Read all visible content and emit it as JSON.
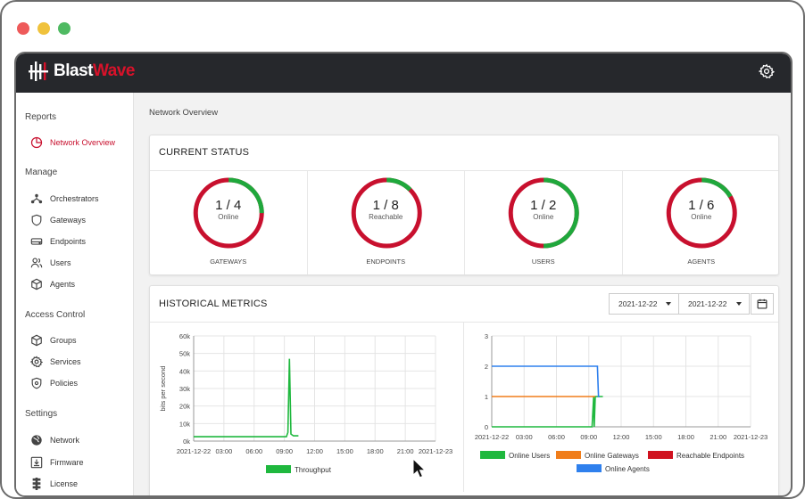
{
  "brand": {
    "name_part1": "Blast",
    "name_part2": "Wave",
    "accent": "#d8122a"
  },
  "sidebar": {
    "sections": [
      {
        "title": "Reports",
        "items": [
          {
            "label": "Network Overview",
            "icon": "pie-chart-icon",
            "active": true
          }
        ]
      },
      {
        "title": "Manage",
        "items": [
          {
            "label": "Orchestrators",
            "icon": "network-icon"
          },
          {
            "label": "Gateways",
            "icon": "shield-icon"
          },
          {
            "label": "Endpoints",
            "icon": "drive-icon"
          },
          {
            "label": "Users",
            "icon": "users-icon"
          },
          {
            "label": "Agents",
            "icon": "cube-icon"
          }
        ]
      },
      {
        "title": "Access Control",
        "items": [
          {
            "label": "Groups",
            "icon": "cube-icon"
          },
          {
            "label": "Services",
            "icon": "gear-icon"
          },
          {
            "label": "Policies",
            "icon": "shield-lock-icon"
          }
        ]
      },
      {
        "title": "Settings",
        "items": [
          {
            "label": "Network",
            "icon": "globe-icon"
          },
          {
            "label": "Firmware",
            "icon": "download-icon"
          },
          {
            "label": "License",
            "icon": "license-icon"
          }
        ]
      }
    ]
  },
  "main": {
    "breadcrumb": "Network Overview",
    "current_status": {
      "title": "CURRENT STATUS",
      "stats": [
        {
          "value": "1 / 4",
          "label": "Online",
          "caption": "GATEWAYS",
          "fraction": 0.25
        },
        {
          "value": "1 / 8",
          "label": "Reachable",
          "caption": "ENDPOINTS",
          "fraction": 0.125
        },
        {
          "value": "1 / 2",
          "label": "Online",
          "caption": "USERS",
          "fraction": 0.5
        },
        {
          "value": "1 / 6",
          "label": "Online",
          "caption": "AGENTS",
          "fraction": 0.1667
        }
      ]
    },
    "historical": {
      "title": "HISTORICAL METRICS",
      "date_from": "2021-12-22",
      "date_to": "2021-12-22"
    }
  },
  "colors": {
    "ring_green": "#1fa83c",
    "ring_red": "#c8102e",
    "line_green": "#1fb83e",
    "line_orange": "#f07d1a",
    "line_blue": "#2f80ed",
    "legend_red": "#d0121f"
  },
  "chart_data": [
    {
      "type": "line",
      "ylabel": "bits per second",
      "xlabel": "",
      "x_ticks": [
        "2021-12-22",
        "03:00",
        "06:00",
        "09:00",
        "12:00",
        "15:00",
        "18:00",
        "21:00",
        "2021-12-23"
      ],
      "y_ticks": [
        "0k",
        "10k",
        "20k",
        "30k",
        "40k",
        "50k",
        "60k"
      ],
      "ylim": [
        0,
        60000
      ],
      "series": [
        {
          "name": "Throughput",
          "color": "#1fb83e",
          "points": [
            [
              0,
              2500
            ],
            [
              9.2,
              2500
            ],
            [
              9.35,
              5000
            ],
            [
              9.5,
              47000
            ],
            [
              9.65,
              4000
            ],
            [
              9.9,
              3000
            ],
            [
              10.4,
              3000
            ]
          ]
        }
      ]
    },
    {
      "type": "line",
      "x_ticks": [
        "2021-12-22",
        "03:00",
        "06:00",
        "09:00",
        "12:00",
        "15:00",
        "18:00",
        "21:00",
        "2021-12-23"
      ],
      "y_ticks": [
        "0",
        "1",
        "2",
        "3"
      ],
      "ylim": [
        0,
        3
      ],
      "series": [
        {
          "name": "Online Users",
          "color": "#1fb83e",
          "points": [
            [
              0,
              0
            ],
            [
              9.3,
              0
            ],
            [
              9.45,
              1
            ],
            [
              9.5,
              0
            ],
            [
              9.6,
              1
            ],
            [
              10.3,
              1
            ]
          ]
        },
        {
          "name": "Online Gateways",
          "color": "#f07d1a",
          "points": [
            [
              0,
              1
            ],
            [
              9.6,
              1
            ]
          ]
        },
        {
          "name": "Reachable Endpoints",
          "color": "#d0121f",
          "points": []
        },
        {
          "name": "Online Agents",
          "color": "#2f80ed",
          "points": [
            [
              0,
              2
            ],
            [
              9.8,
              2
            ],
            [
              9.9,
              1
            ],
            [
              10.0,
              1
            ]
          ]
        }
      ]
    }
  ]
}
